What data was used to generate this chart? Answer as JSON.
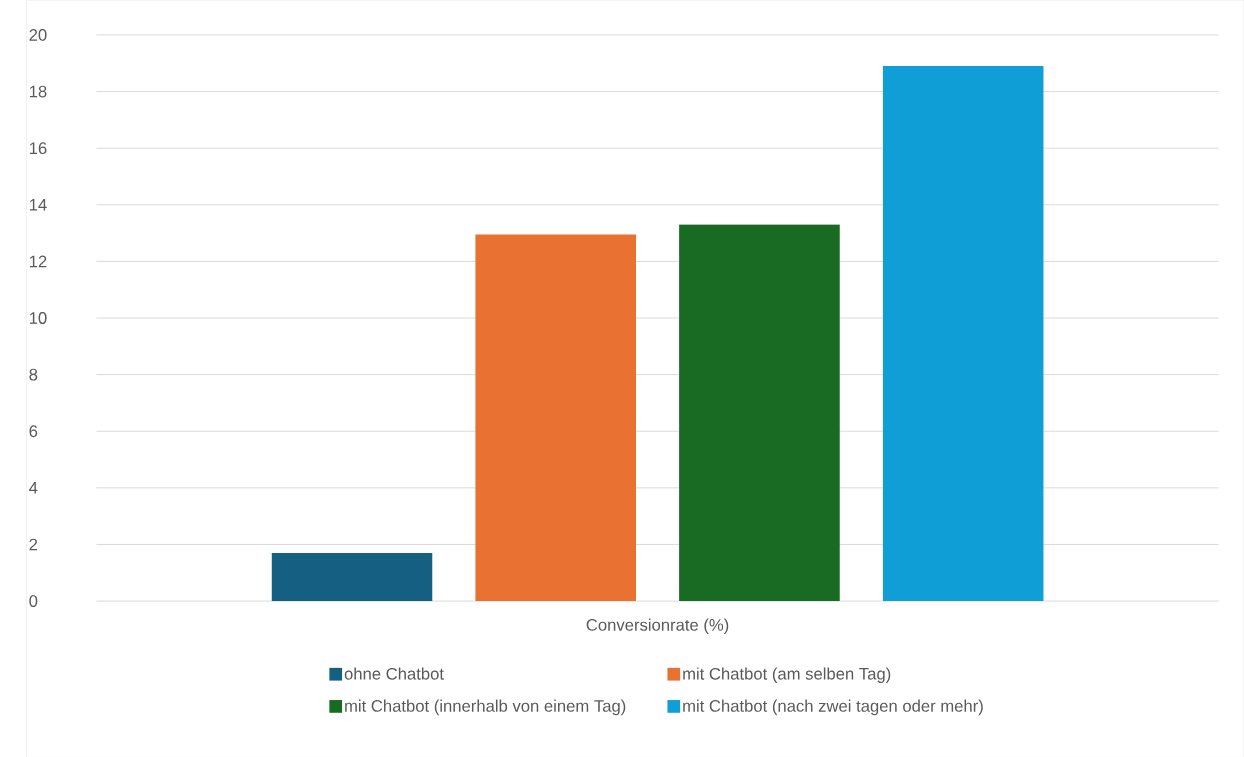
{
  "chart_data": {
    "type": "bar",
    "categories": [
      "Conversionrate (%)"
    ],
    "series": [
      {
        "name": "ohne Chatbot",
        "color": "#156082",
        "values": [
          1.7
        ]
      },
      {
        "name": "mit Chatbot (am selben Tag)",
        "color": "#e97132",
        "values": [
          12.95
        ]
      },
      {
        "name": "mit Chatbot (innerhalb von einem Tag)",
        "color": "#196b24",
        "values": [
          13.3
        ]
      },
      {
        "name": "mit Chatbot (nach zwei tagen oder mehr)",
        "color": "#0f9ed5",
        "values": [
          18.9
        ]
      }
    ],
    "ylim": [
      0,
      20
    ],
    "yticks": [
      0,
      2,
      4,
      6,
      8,
      10,
      12,
      14,
      16,
      18,
      20
    ],
    "grid": "y",
    "legend": "bottom"
  }
}
